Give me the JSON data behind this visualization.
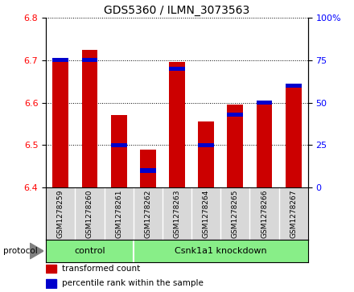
{
  "title": "GDS5360 / ILMN_3073563",
  "samples": [
    "GSM1278259",
    "GSM1278260",
    "GSM1278261",
    "GSM1278262",
    "GSM1278263",
    "GSM1278264",
    "GSM1278265",
    "GSM1278266",
    "GSM1278267"
  ],
  "transformed_counts": [
    6.705,
    6.725,
    6.57,
    6.49,
    6.695,
    6.555,
    6.595,
    6.605,
    6.645
  ],
  "percentile_ranks": [
    75,
    75,
    25,
    10,
    70,
    25,
    43,
    50,
    60
  ],
  "ylim": [
    6.4,
    6.8
  ],
  "y2lim": [
    0,
    100
  ],
  "yticks": [
    6.4,
    6.5,
    6.6,
    6.7,
    6.8
  ],
  "y2ticks": [
    0,
    25,
    50,
    75,
    100
  ],
  "y2tick_labels": [
    "0",
    "25",
    "50",
    "75",
    "100%"
  ],
  "bar_color": "#cc0000",
  "percentile_color": "#0000cc",
  "n_control": 3,
  "n_knockdown": 6,
  "control_label": "control",
  "knockdown_label": "Csnk1a1 knockdown",
  "protocol_label": "protocol",
  "legend_count_label": "transformed count",
  "legend_percentile_label": "percentile rank within the sample",
  "group_color": "#88ee88",
  "ticklabel_area_color": "#d8d8d8",
  "bar_bottom": 6.4
}
